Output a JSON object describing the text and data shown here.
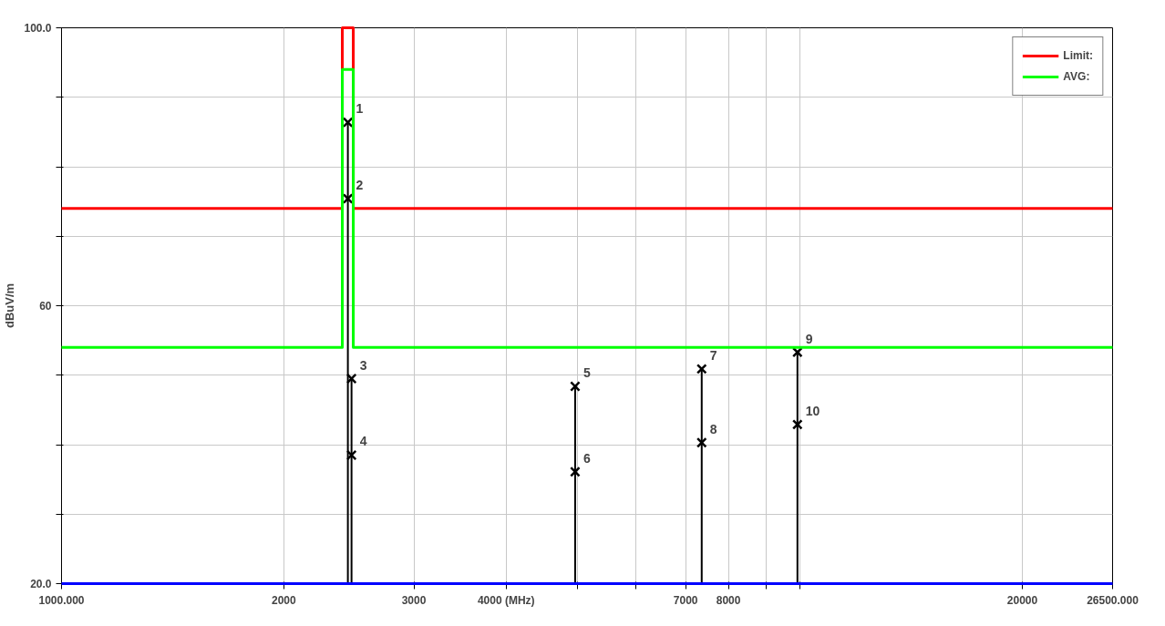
{
  "chart_data": {
    "type": "line",
    "ylabel": "dBuV/m",
    "log": "x",
    "xlim": [
      1000,
      26500
    ],
    "ylim": [
      20,
      100
    ],
    "xticks": [
      {
        "value": 1000,
        "label": "1000.000"
      },
      2000,
      3000,
      {
        "value": 4000,
        "label": "4000 (MHz)"
      },
      {
        "value": 5000,
        "label": null
      },
      {
        "value": 6000,
        "label": null
      },
      7000,
      8000,
      {
        "value": 9000,
        "label": null
      },
      {
        "value": 10000,
        "label": null
      },
      20000,
      {
        "value": 26500,
        "label": "26500.000"
      }
    ],
    "yticks": [
      {
        "value": 20,
        "label": "20.0"
      },
      {
        "value": 30,
        "label": null
      },
      {
        "value": 40,
        "label": null
      },
      {
        "value": 50,
        "label": null
      },
      60,
      {
        "value": 70,
        "label": null
      },
      {
        "value": 80,
        "label": null
      },
      {
        "value": 90,
        "label": null
      },
      {
        "value": 100,
        "label": "100.0"
      }
    ],
    "grid": true,
    "legend": "top right",
    "marker": "none",
    "line_style": "solid",
    "series": [
      {
        "name": "Limit:",
        "color": "#ff0000",
        "x": [
          1000,
          2400,
          2400,
          2483.5,
          2483.5,
          26500
        ],
        "values": [
          74,
          74,
          100,
          100,
          74,
          74
        ]
      },
      {
        "name": "AVG:",
        "color": "#00ff00",
        "x": [
          1000,
          2400,
          2400,
          2483.5,
          2483.5,
          26500
        ],
        "values": [
          54,
          54,
          94,
          94,
          54,
          54
        ]
      },
      {
        "color": "#0000ff",
        "x": [
          1000,
          26500
        ],
        "values": [
          20,
          20
        ]
      },
      {
        "type": "lollipop",
        "marker": "cross",
        "color": "#000000",
        "x": [
          2442,
          2470,
          4960,
          7360,
          9920
        ],
        "values": [
          86.4,
          49.5,
          48.4,
          50.9,
          53.3
        ]
      },
      {
        "type": "scatter",
        "marker": "cross",
        "color": "#000000",
        "x": [
          2442,
          2470,
          4960,
          7360,
          9920
        ],
        "values": [
          75.4,
          38.5,
          36.1,
          40.3,
          42.9
        ]
      }
    ],
    "annotations": [
      {
        "text": "1",
        "x": 2442,
        "y": 86.4
      },
      {
        "text": "2",
        "x": 2442,
        "y": 75.4
      },
      {
        "text": "3",
        "x": 2470,
        "y": 49.5
      },
      {
        "text": "4",
        "x": 2470,
        "y": 38.5
      },
      {
        "text": "5",
        "x": 4960,
        "y": 48.4
      },
      {
        "text": "6",
        "x": 4960,
        "y": 36.1
      },
      {
        "text": "7",
        "x": 7360,
        "y": 50.9
      },
      {
        "text": "8",
        "x": 7360,
        "y": 40.3
      },
      {
        "text": "9",
        "x": 9920,
        "y": 53.3
      },
      {
        "text": "10",
        "x": 9920,
        "y": 42.9
      }
    ]
  }
}
